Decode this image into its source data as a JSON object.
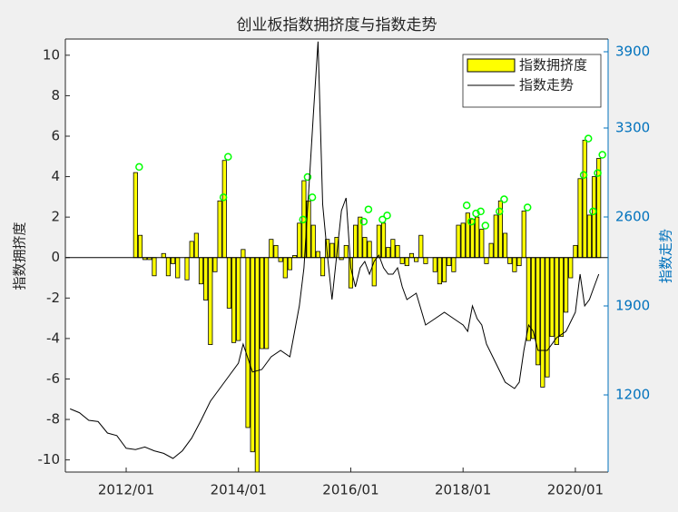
{
  "chart_data": {
    "type": "combo",
    "title": "创业板指数拥挤度与指数走势",
    "ylabel": "指数拥挤度",
    "y2label": "指数走势",
    "y2color": "#0072bd",
    "legend": "upper right",
    "xlim": [
      "2010/12",
      "2020/08"
    ],
    "xticks": [
      "2012/01",
      "2014/01",
      "2016/01",
      "2018/01",
      "2020/01"
    ],
    "ylim": [
      -10.6,
      10.8
    ],
    "yticks": [
      -10,
      -8,
      -6,
      -4,
      -2,
      0,
      2,
      4,
      6,
      8,
      10
    ],
    "y2lim": [
      593,
      4000
    ],
    "y2ticks": [
      1200,
      1900,
      2600,
      3300,
      3900
    ],
    "series": [
      {
        "name": "指数拥挤度",
        "type": "bar",
        "color": "#ffff00",
        "x": [
          "2012/03",
          "2012/04",
          "2012/05",
          "2012/06",
          "2012/07",
          "2012/08",
          "2012/09",
          "2012/10",
          "2012/11",
          "2012/12",
          "2013/01",
          "2013/02",
          "2013/03",
          "2013/04",
          "2013/05",
          "2013/06",
          "2013/07",
          "2013/08",
          "2013/09",
          "2013/10",
          "2013/11",
          "2013/12",
          "2014/01",
          "2014/02",
          "2014/03",
          "2014/04",
          "2014/05",
          "2014/06",
          "2014/07",
          "2014/08",
          "2014/09",
          "2014/10",
          "2014/11",
          "2014/12",
          "2015/01",
          "2015/02",
          "2015/03",
          "2015/04",
          "2015/05",
          "2015/06",
          "2015/07",
          "2015/08",
          "2015/09",
          "2015/10",
          "2015/11",
          "2015/12",
          "2016/01",
          "2016/02",
          "2016/03",
          "2016/04",
          "2016/05",
          "2016/06",
          "2016/07",
          "2016/08",
          "2016/09",
          "2016/10",
          "2016/11",
          "2016/12",
          "2017/01",
          "2017/02",
          "2017/03",
          "2017/04",
          "2017/05",
          "2017/06",
          "2017/07",
          "2017/08",
          "2017/09",
          "2017/10",
          "2017/11",
          "2017/12",
          "2018/01",
          "2018/02",
          "2018/03",
          "2018/04",
          "2018/05",
          "2018/06",
          "2018/07",
          "2018/08",
          "2018/09",
          "2018/10",
          "2018/11",
          "2018/12",
          "2019/01",
          "2019/02",
          "2019/03",
          "2019/04",
          "2019/05",
          "2019/06",
          "2019/07",
          "2019/08",
          "2019/09",
          "2019/10",
          "2019/11",
          "2019/12",
          "2020/01",
          "2020/02",
          "2020/03",
          "2020/04",
          "2020/05",
          "2020/06"
        ],
        "values": [
          4.2,
          1.1,
          -0.1,
          -0.1,
          -0.9,
          0,
          0.2,
          -0.9,
          -0.3,
          -1.0,
          0,
          -1.1,
          0.8,
          1.2,
          -1.3,
          -2.1,
          -4.3,
          -0.7,
          2.8,
          4.8,
          -2.5,
          -4.2,
          -4.1,
          0.4,
          -8.4,
          -9.6,
          -10.6,
          -4.5,
          -4.5,
          0.9,
          0.6,
          -0.2,
          -1.0,
          -0.6,
          0.1,
          1.7,
          3.8,
          2.8,
          1.6,
          0.3,
          -0.9,
          0.9,
          0.7,
          1.0,
          -0.1,
          0.6,
          -1.5,
          1.6,
          2.0,
          1.0,
          0.8,
          -1.4,
          1.6,
          1.7,
          0.5,
          0.9,
          0.6,
          -0.3,
          -0.4,
          0.2,
          -0.2,
          1.1,
          -0.3,
          0,
          -0.7,
          -1.3,
          -1.2,
          -0.4,
          -0.7,
          1.6,
          1.7,
          2.2,
          1.9,
          2.0,
          1.4,
          -0.3,
          0.7,
          2.1,
          2.8,
          1.2,
          -0.3,
          -0.7,
          -0.4,
          2.3,
          -4.1,
          -4.0,
          -5.3,
          -6.4,
          -5.9,
          -3.9,
          -4.3,
          -3.9,
          -2.7,
          -1.0,
          0.6,
          3.9,
          5.8,
          2.1,
          4.0,
          4.9
        ]
      },
      {
        "type": "marker",
        "color": "#00ff00",
        "x": [
          "2012/03",
          "2013/09",
          "2013/10",
          "2015/02",
          "2015/03",
          "2015/04",
          "2016/03",
          "2016/04",
          "2016/07",
          "2016/08",
          "2018/01",
          "2018/02",
          "2018/03",
          "2018/04",
          "2018/05",
          "2018/08",
          "2018/09",
          "2019/02",
          "2020/02",
          "2020/03",
          "2020/04",
          "2020/05",
          "2020/06"
        ],
        "values": [
          4.3,
          2.8,
          4.8,
          1.7,
          3.8,
          2.8,
          1.6,
          2.2,
          1.7,
          1.9,
          2.4,
          1.6,
          2.0,
          2.1,
          1.4,
          2.1,
          2.7,
          2.3,
          3.9,
          5.7,
          2.1,
          4.0,
          4.9
        ]
      },
      {
        "name": "指数走势",
        "type": "line",
        "axis": "y2",
        "color": "#000000",
        "x": [
          "2011/01",
          "2011/03",
          "2011/05",
          "2011/07",
          "2011/09",
          "2011/11",
          "2012/01",
          "2012/03",
          "2012/05",
          "2012/07",
          "2012/09",
          "2012/11",
          "2013/01",
          "2013/03",
          "2013/05",
          "2013/07",
          "2013/09",
          "2013/11",
          "2014/01",
          "2014/02",
          "2014/04",
          "2014/06",
          "2014/08",
          "2014/10",
          "2014/12",
          "2015/01",
          "2015/02",
          "2015/03",
          "2015/04",
          "2015/05",
          "2015/06",
          "2015/07",
          "2015/08",
          "2015/09",
          "2015/10",
          "2015/11",
          "2015/12",
          "2016/01",
          "2016/02",
          "2016/03",
          "2016/04",
          "2016/05",
          "2016/06",
          "2016/07",
          "2016/08",
          "2016/09",
          "2016/10",
          "2016/11",
          "2016/12",
          "2017/01",
          "2017/03",
          "2017/05",
          "2017/07",
          "2017/09",
          "2017/11",
          "2018/01",
          "2018/02",
          "2018/03",
          "2018/04",
          "2018/05",
          "2018/06",
          "2018/08",
          "2018/10",
          "2018/12",
          "2019/01",
          "2019/02",
          "2019/03",
          "2019/04",
          "2019/05",
          "2019/07",
          "2019/09",
          "2019/11",
          "2020/01",
          "2020/02",
          "2020/03",
          "2020/04",
          "2020/05",
          "2020/06"
        ],
        "values": [
          1090,
          1060,
          1000,
          990,
          900,
          880,
          780,
          770,
          790,
          760,
          740,
          700,
          760,
          860,
          1000,
          1150,
          1250,
          1350,
          1450,
          1600,
          1380,
          1400,
          1500,
          1550,
          1500,
          1700,
          1900,
          2200,
          2800,
          3400,
          3980,
          2700,
          2300,
          1950,
          2300,
          2650,
          2750,
          2200,
          2050,
          2200,
          2250,
          2150,
          2250,
          2300,
          2200,
          2150,
          2150,
          2200,
          2050,
          1950,
          2000,
          1750,
          1800,
          1850,
          1800,
          1750,
          1700,
          1900,
          1800,
          1750,
          1600,
          1450,
          1300,
          1250,
          1300,
          1550,
          1750,
          1700,
          1550,
          1550,
          1650,
          1700,
          1850,
          2150,
          1900,
          1950,
          2050,
          2150
        ]
      }
    ]
  }
}
